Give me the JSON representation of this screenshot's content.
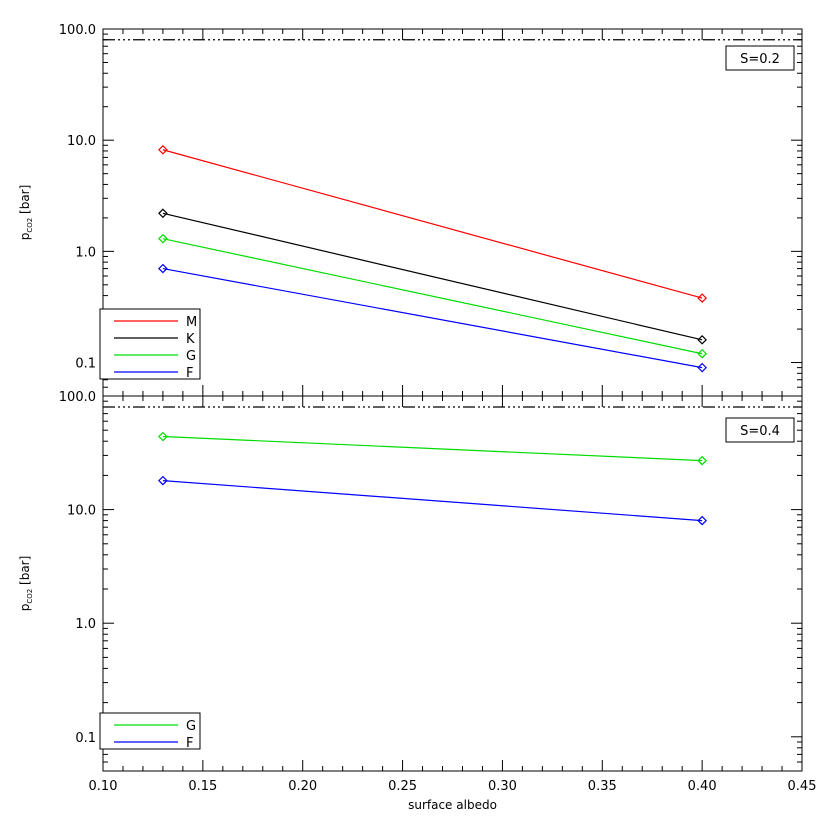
{
  "chart_data": [
    {
      "type": "line",
      "panel": "top",
      "annotation": "S=0.2",
      "ylabel_main": "p",
      "ylabel_sub": "CO2",
      "ylabel_unit": " [bar]",
      "xlabel": "",
      "x_scale": "linear",
      "y_scale": "log",
      "xlim": [
        0.1,
        0.45
      ],
      "ylim": [
        0.05,
        100.0
      ],
      "y_ticks": [
        0.1,
        1.0,
        10.0,
        100.0
      ],
      "y_tick_labels": [
        "0.1",
        "1.0",
        "10.0",
        "100.0"
      ],
      "reference_line": {
        "y": 80,
        "style": "dash-dot-dot-dot",
        "color": "#000000"
      },
      "legend_position": "bottom-left",
      "marker": "diamond",
      "series": [
        {
          "name": "M",
          "color": "#ff0000",
          "x": [
            0.13,
            0.4
          ],
          "y": [
            8.2,
            0.38
          ]
        },
        {
          "name": "K",
          "color": "#000000",
          "x": [
            0.13,
            0.4
          ],
          "y": [
            2.2,
            0.16
          ]
        },
        {
          "name": "G",
          "color": "#00dd00",
          "x": [
            0.13,
            0.4
          ],
          "y": [
            1.3,
            0.12
          ]
        },
        {
          "name": "F",
          "color": "#0000ff",
          "x": [
            0.13,
            0.4
          ],
          "y": [
            0.7,
            0.09
          ]
        }
      ]
    },
    {
      "type": "line",
      "panel": "bottom",
      "annotation": "S=0.4",
      "ylabel_main": "p",
      "ylabel_sub": "CO2",
      "ylabel_unit": " [bar]",
      "xlabel": "surface albedo",
      "x_scale": "linear",
      "y_scale": "log",
      "xlim": [
        0.1,
        0.45
      ],
      "ylim": [
        0.05,
        100.0
      ],
      "x_ticks": [
        0.1,
        0.15,
        0.2,
        0.25,
        0.3,
        0.35,
        0.4,
        0.45
      ],
      "x_tick_labels": [
        "0.10",
        "0.15",
        "0.20",
        "0.25",
        "0.30",
        "0.35",
        "0.40",
        "0.45"
      ],
      "y_ticks": [
        0.1,
        1.0,
        10.0,
        100.0
      ],
      "y_tick_labels": [
        "0.1",
        "1.0",
        "10.0",
        "100.0"
      ],
      "reference_line": {
        "y": 80,
        "style": "dash-dot-dot-dot",
        "color": "#000000"
      },
      "legend_position": "bottom-left",
      "marker": "diamond",
      "series": [
        {
          "name": "G",
          "color": "#00dd00",
          "x": [
            0.13,
            0.4
          ],
          "y": [
            44,
            27
          ]
        },
        {
          "name": "F",
          "color": "#0000ff",
          "x": [
            0.13,
            0.4
          ],
          "y": [
            18,
            8
          ]
        }
      ]
    }
  ]
}
